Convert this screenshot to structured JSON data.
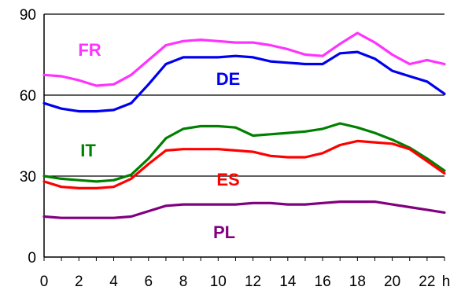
{
  "chart_data": {
    "type": "line",
    "title": "",
    "xlabel": "",
    "ylabel": "",
    "x_unit": "h",
    "xlim": [
      0,
      23
    ],
    "ylim": [
      0,
      90
    ],
    "x_ticks": [
      0,
      2,
      4,
      6,
      8,
      10,
      12,
      14,
      16,
      18,
      20,
      22
    ],
    "y_ticks": [
      0,
      30,
      60,
      90
    ],
    "grid": "horizontal",
    "x": [
      0,
      1,
      2,
      3,
      4,
      5,
      6,
      7,
      8,
      9,
      10,
      11,
      12,
      13,
      14,
      15,
      16,
      17,
      18,
      19,
      20,
      21,
      22,
      23
    ],
    "series": [
      {
        "name": "FR",
        "color": "#ff33ff",
        "values": [
          67.5,
          67,
          65.5,
          63.5,
          64,
          67.5,
          73,
          78.5,
          80,
          80.5,
          80,
          79.5,
          79.5,
          78.5,
          77,
          75,
          74.5,
          79,
          83,
          79.5,
          75,
          71.5,
          73,
          71.5
        ]
      },
      {
        "name": "DE",
        "color": "#0000ee",
        "values": [
          57,
          55,
          54,
          54,
          54.5,
          57,
          64,
          71.5,
          74,
          74,
          74,
          74.5,
          74,
          72.5,
          72,
          71.5,
          71.5,
          75.5,
          76,
          73.5,
          69,
          67,
          65,
          60.5
        ]
      },
      {
        "name": "IT",
        "color": "#008000",
        "values": [
          30,
          29,
          28.5,
          28,
          28.5,
          30.5,
          36.5,
          44,
          47.5,
          48.5,
          48.5,
          48,
          45,
          45.5,
          46,
          46.5,
          47.5,
          49.5,
          48,
          46,
          43.5,
          40.5,
          36.5,
          32
        ]
      },
      {
        "name": "ES",
        "color": "#ff0000",
        "values": [
          28,
          26,
          25.5,
          25.5,
          26,
          29,
          34.5,
          39.5,
          40,
          40,
          40,
          39.5,
          39,
          37.5,
          37,
          37,
          38.5,
          41.5,
          43,
          42.5,
          42,
          40,
          35.5,
          31
        ]
      },
      {
        "name": "PL",
        "color": "#800080",
        "values": [
          15,
          14.5,
          14.5,
          14.5,
          14.5,
          15,
          17,
          19,
          19.5,
          19.5,
          19.5,
          19.5,
          20,
          20,
          19.5,
          19.5,
          20,
          20.5,
          20.5,
          20.5,
          19.5,
          18.5,
          17.5,
          16.5
        ]
      }
    ]
  }
}
